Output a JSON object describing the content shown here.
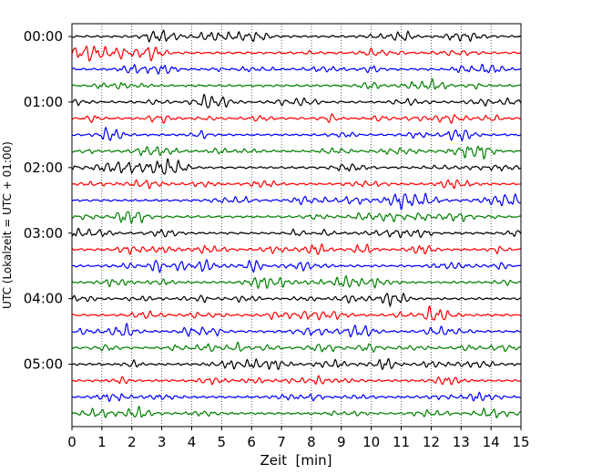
{
  "chart_data": {
    "type": "line",
    "title": "",
    "xlabel": "Zeit  [min]",
    "ylabel": "UTC (Lokalzeit = UTC + 01:00)",
    "xlim": [
      0,
      15
    ],
    "x_ticks": [
      "0",
      "1",
      "2",
      "3",
      "4",
      "5",
      "6",
      "7",
      "8",
      "9",
      "10",
      "11",
      "12",
      "13",
      "14",
      "15"
    ],
    "y_ticks": [
      "00:00",
      "01:00",
      "02:00",
      "03:00",
      "04:00",
      "05:00"
    ],
    "grid": "vertical dotted",
    "trace_interval_min": 15,
    "trace_count": 24,
    "trace_colors": [
      "#000000",
      "#ff0000",
      "#0000ff",
      "#008000"
    ]
  }
}
